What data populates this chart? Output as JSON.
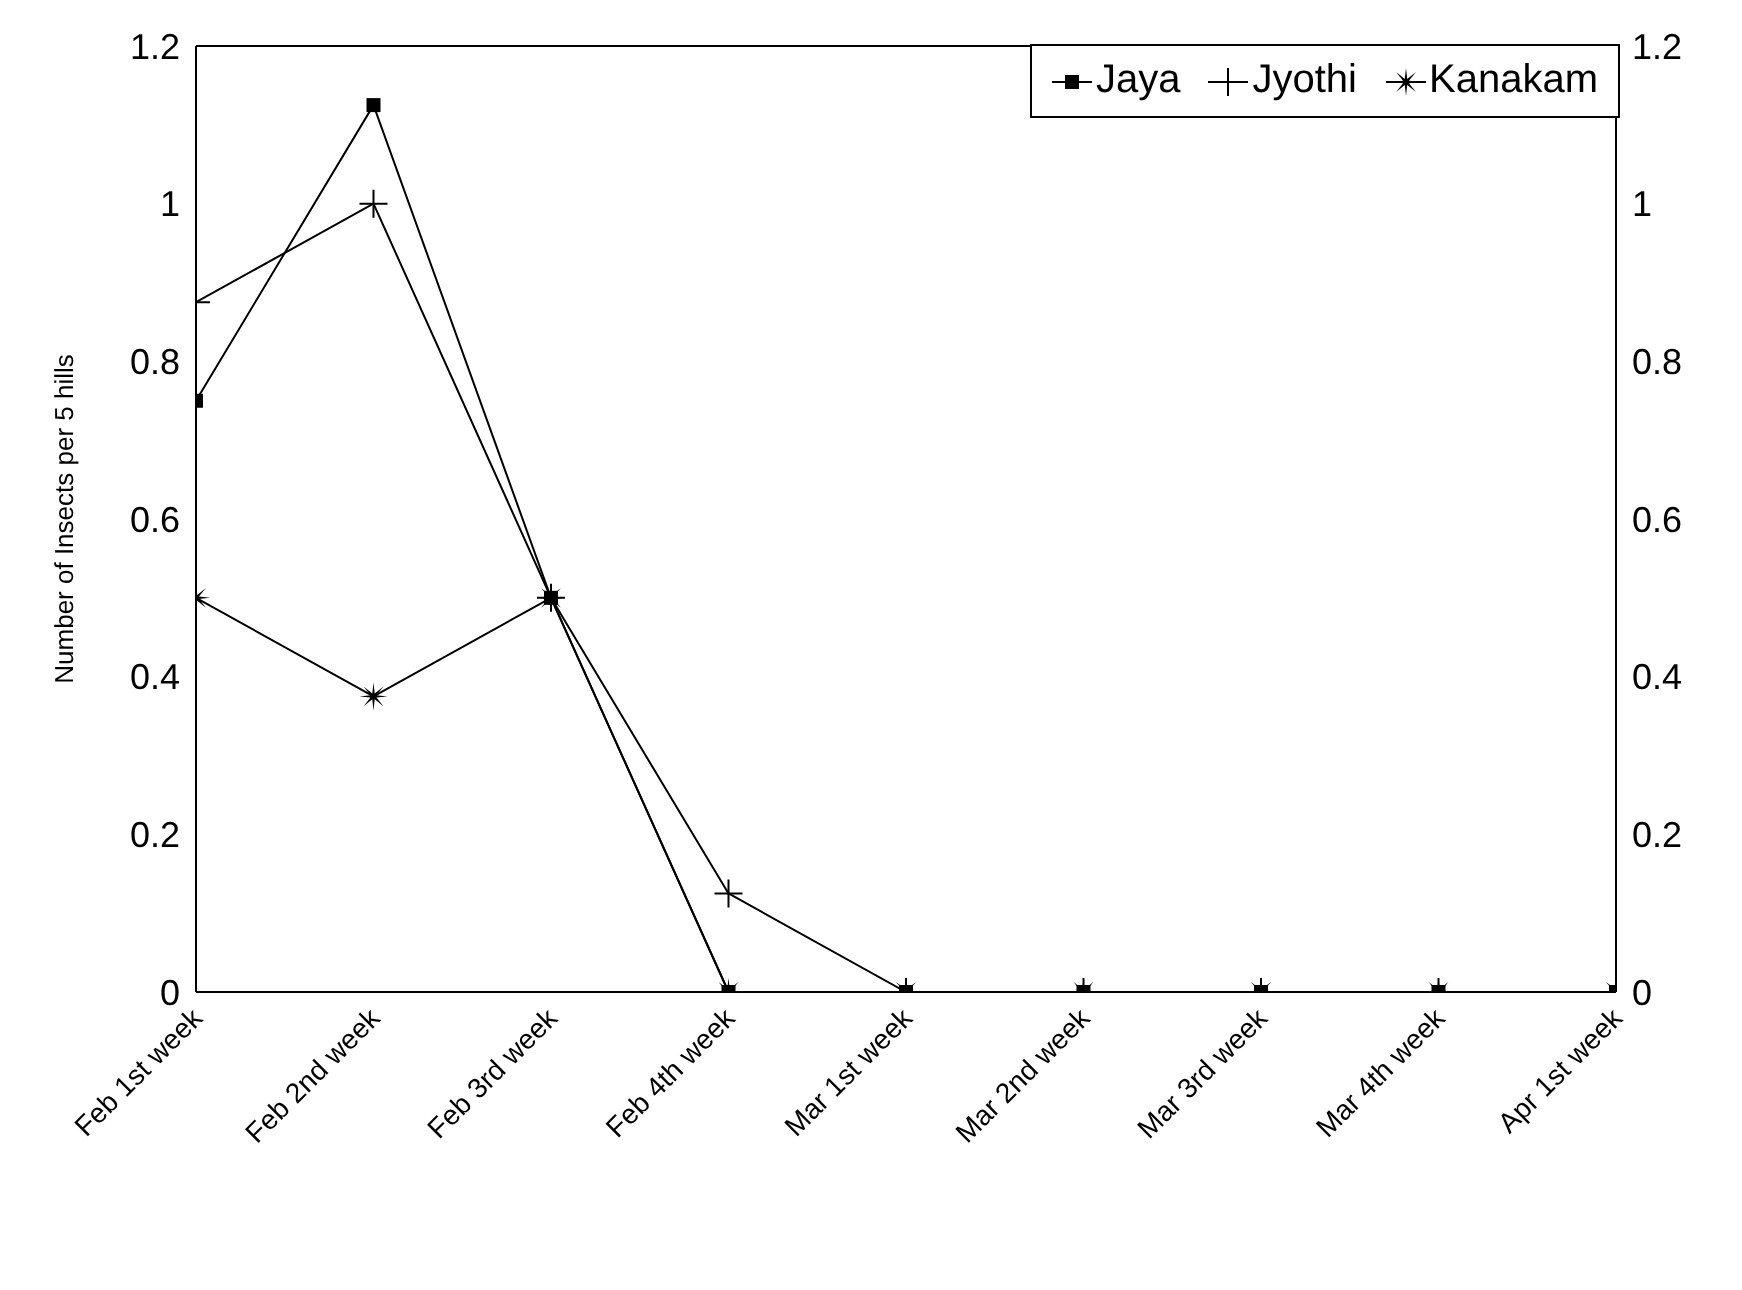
{
  "chart_data": {
    "type": "line",
    "ylabel": "Number of Insects per 5 hills",
    "categories": [
      "Feb 1st week",
      "Feb 2nd week",
      "Feb 3rd week",
      "Feb 4th week",
      "Mar 1st week",
      "Mar 2nd week",
      "Mar 3rd week",
      "Mar 4th week",
      "Apr 1st week"
    ],
    "series": [
      {
        "name": "Jaya",
        "color": "#000000",
        "marker": "square",
        "values": [
          0.75,
          1.125,
          0.5,
          0,
          0,
          0,
          0,
          0,
          0
        ]
      },
      {
        "name": "Jyothi",
        "color": "#000000",
        "marker": "cross",
        "values": [
          0.875,
          1.0,
          0.5,
          0.125,
          0,
          0,
          0,
          0,
          0
        ]
      },
      {
        "name": "Kanakam",
        "color": "#000000",
        "marker": "star",
        "values": [
          0.5,
          0.375,
          0.5,
          0,
          0,
          0,
          0,
          0,
          0
        ]
      }
    ],
    "ylim": [
      0,
      1.2
    ],
    "yticks": [
      0,
      0.2,
      0.4,
      0.6,
      0.8,
      1,
      1.2
    ],
    "y2lim": [
      0,
      1.2
    ],
    "y2ticks": [
      0,
      0.2,
      0.4,
      0.6,
      0.8,
      1,
      1.2
    ],
    "grid": false,
    "legend": "top right",
    "line_style": "solid"
  }
}
